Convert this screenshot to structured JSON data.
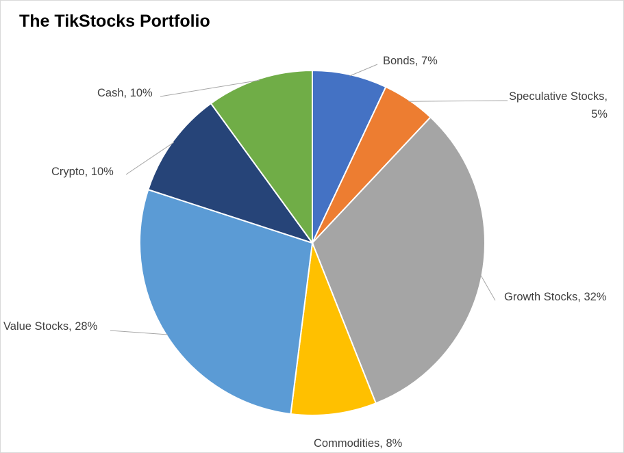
{
  "chart_data": {
    "type": "pie",
    "title": "The TikStocks Portfolio",
    "categories": [
      "Bonds",
      "Speculative Stocks",
      "Growth Stocks",
      "Commodities",
      "Value Stocks",
      "Crypto",
      "Cash"
    ],
    "values": [
      7,
      5,
      32,
      8,
      28,
      10,
      10
    ],
    "unit": "%",
    "colors": [
      "#4472c4",
      "#ed7d31",
      "#a5a5a5",
      "#ffc000",
      "#5b9bd5",
      "#264478",
      "#70ad47"
    ],
    "data_labels": [
      [
        "Bonds, 7%"
      ],
      [
        "Speculative Stocks,",
        "5%"
      ],
      [
        "Growth Stocks, 32%"
      ],
      [
        "Commodities, 8%"
      ],
      [
        "Value Stocks, 28%"
      ],
      [
        "Crypto, 10%"
      ],
      [
        "Cash, 10%"
      ]
    ],
    "legend": "none"
  }
}
